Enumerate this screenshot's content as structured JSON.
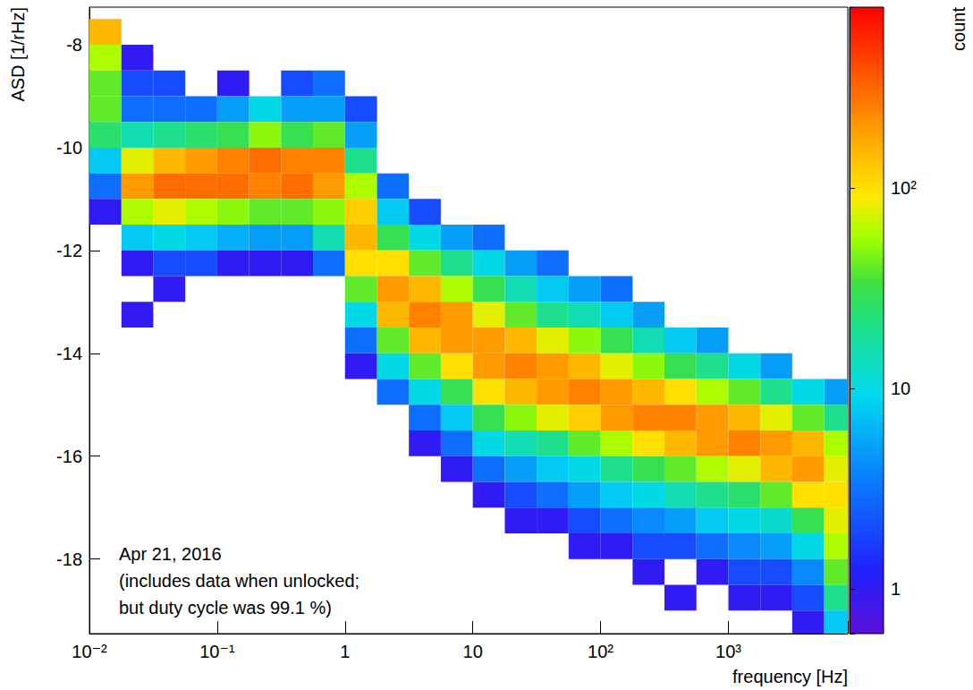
{
  "chart_data": {
    "type": "heatmap",
    "x_label": "frequency [Hz]",
    "y_label": "ASD [1/rHz]",
    "log": "x",
    "xlim": [
      0.01,
      8600
    ],
    "xticks": [
      {
        "value": 0.01,
        "label": "10⁻²"
      },
      {
        "value": 0.1,
        "label": "10⁻¹"
      },
      1,
      10,
      {
        "value": 100,
        "label": "10²"
      },
      {
        "value": 1000,
        "label": "10³"
      }
    ],
    "ylim": [
      -19.45,
      -7.27
    ],
    "yticks": [
      -8,
      -10,
      -12,
      -14,
      -16,
      -18
    ],
    "annotation": [
      "Apr 21, 2016",
      "(includes data when unlocked;",
      "but duty cycle was 99.1 %)"
    ],
    "x_bins": [
      0.01,
      0.0178,
      0.0316,
      0.0562,
      0.1,
      0.178,
      0.316,
      0.562,
      1,
      1.78,
      3.16,
      5.62,
      10,
      17.8,
      31.6,
      56.2,
      100,
      178,
      316,
      562,
      1000,
      1780,
      3160,
      5620,
      8600
    ],
    "y_bins": [
      -19.5,
      -19,
      -18.5,
      -18,
      -17.5,
      -17,
      -16.5,
      -16,
      -15.5,
      -15,
      -14.5,
      -14,
      -13.5,
      -13,
      -12.5,
      -12,
      -11.5,
      -11,
      -10.5,
      -10,
      -9.5,
      -9,
      -8.5,
      -8,
      -7.5
    ],
    "cells": [
      [
        0.01,
        -8,
        150
      ],
      [
        0.01,
        -8.5,
        60
      ],
      [
        0.01,
        -9,
        40
      ],
      [
        0.01,
        -9.5,
        40
      ],
      [
        0.01,
        -10,
        25
      ],
      [
        0.01,
        -10.5,
        8
      ],
      [
        0.01,
        -11,
        3
      ],
      [
        0.01,
        -11.5,
        1
      ],
      [
        0.0178,
        -8.5,
        1
      ],
      [
        0.0178,
        -9,
        2
      ],
      [
        0.0178,
        -9.5,
        3
      ],
      [
        0.0178,
        -10,
        15
      ],
      [
        0.0178,
        -10.5,
        80
      ],
      [
        0.0178,
        -11,
        200
      ],
      [
        0.0178,
        -11.5,
        60
      ],
      [
        0.0178,
        -12,
        8
      ],
      [
        0.0178,
        -12.5,
        1
      ],
      [
        0.0178,
        -13.5,
        1
      ],
      [
        0.0316,
        -9,
        2
      ],
      [
        0.0316,
        -9.5,
        3
      ],
      [
        0.0316,
        -10,
        20
      ],
      [
        0.0316,
        -10.5,
        150
      ],
      [
        0.0316,
        -11,
        300
      ],
      [
        0.0316,
        -11.5,
        80
      ],
      [
        0.0316,
        -12,
        10
      ],
      [
        0.0316,
        -12.5,
        2
      ],
      [
        0.0316,
        -13,
        1
      ],
      [
        0.0562,
        -9.5,
        3
      ],
      [
        0.0562,
        -10,
        25
      ],
      [
        0.0562,
        -10.5,
        200
      ],
      [
        0.0562,
        -11,
        300
      ],
      [
        0.0562,
        -11.5,
        60
      ],
      [
        0.0562,
        -12,
        8
      ],
      [
        0.0562,
        -12.5,
        2
      ],
      [
        0.1,
        -9,
        1
      ],
      [
        0.1,
        -9.5,
        5
      ],
      [
        0.1,
        -10,
        30
      ],
      [
        0.1,
        -10.5,
        250
      ],
      [
        0.1,
        -11,
        300
      ],
      [
        0.1,
        -11.5,
        50
      ],
      [
        0.1,
        -12,
        6
      ],
      [
        0.1,
        -12.5,
        1
      ],
      [
        0.178,
        -9.5,
        10
      ],
      [
        0.178,
        -10,
        50
      ],
      [
        0.178,
        -10.5,
        300
      ],
      [
        0.178,
        -11,
        250
      ],
      [
        0.178,
        -11.5,
        40
      ],
      [
        0.178,
        -12,
        5
      ],
      [
        0.178,
        -12.5,
        1
      ],
      [
        0.316,
        -9,
        2
      ],
      [
        0.316,
        -9.5,
        5
      ],
      [
        0.316,
        -10,
        30
      ],
      [
        0.316,
        -10.5,
        250
      ],
      [
        0.316,
        -11,
        300
      ],
      [
        0.316,
        -11.5,
        40
      ],
      [
        0.316,
        -12,
        5
      ],
      [
        0.316,
        -12.5,
        1
      ],
      [
        0.562,
        -9,
        3
      ],
      [
        0.562,
        -9.5,
        5
      ],
      [
        0.562,
        -10,
        40
      ],
      [
        0.562,
        -10.5,
        250
      ],
      [
        0.562,
        -11,
        200
      ],
      [
        0.562,
        -11.5,
        50
      ],
      [
        0.562,
        -12,
        15
      ],
      [
        0.562,
        -12.5,
        3
      ],
      [
        1,
        -9.5,
        2
      ],
      [
        1,
        -10,
        5
      ],
      [
        1,
        -10.5,
        20
      ],
      [
        1,
        -11,
        60
      ],
      [
        1,
        -11.5,
        120
      ],
      [
        1,
        -12,
        150
      ],
      [
        1,
        -12.5,
        100
      ],
      [
        1,
        -13,
        40
      ],
      [
        1,
        -13.5,
        10
      ],
      [
        1,
        -14,
        3
      ],
      [
        1,
        -14.5,
        1
      ],
      [
        1.78,
        -11,
        3
      ],
      [
        1.78,
        -11.5,
        8
      ],
      [
        1.78,
        -12,
        30
      ],
      [
        1.78,
        -12.5,
        100
      ],
      [
        1.78,
        -13,
        200
      ],
      [
        1.78,
        -13.5,
        150
      ],
      [
        1.78,
        -14,
        40
      ],
      [
        1.78,
        -14.5,
        10
      ],
      [
        1.78,
        -15,
        3
      ],
      [
        3.16,
        -11.5,
        2
      ],
      [
        3.16,
        -12,
        10
      ],
      [
        3.16,
        -12.5,
        40
      ],
      [
        3.16,
        -13,
        150
      ],
      [
        3.16,
        -13.5,
        250
      ],
      [
        3.16,
        -14,
        150
      ],
      [
        3.16,
        -14.5,
        40
      ],
      [
        3.16,
        -15,
        10
      ],
      [
        3.16,
        -15.5,
        3
      ],
      [
        3.16,
        -16,
        1
      ],
      [
        5.62,
        -12,
        5
      ],
      [
        5.62,
        -12.5,
        20
      ],
      [
        5.62,
        -13,
        60
      ],
      [
        5.62,
        -13.5,
        200
      ],
      [
        5.62,
        -14,
        200
      ],
      [
        5.62,
        -14.5,
        100
      ],
      [
        5.62,
        -15,
        30
      ],
      [
        5.62,
        -15.5,
        8
      ],
      [
        5.62,
        -16,
        3
      ],
      [
        5.62,
        -16.5,
        1
      ],
      [
        10,
        -12,
        3
      ],
      [
        10,
        -12.5,
        10
      ],
      [
        10,
        -13,
        30
      ],
      [
        10,
        -13.5,
        80
      ],
      [
        10,
        -14,
        200
      ],
      [
        10,
        -14.5,
        200
      ],
      [
        10,
        -15,
        100
      ],
      [
        10,
        -15.5,
        30
      ],
      [
        10,
        -16,
        10
      ],
      [
        10,
        -16.5,
        3
      ],
      [
        10,
        -17,
        1
      ],
      [
        17.8,
        -12.5,
        5
      ],
      [
        17.8,
        -13,
        15
      ],
      [
        17.8,
        -13.5,
        40
      ],
      [
        17.8,
        -14,
        150
      ],
      [
        17.8,
        -14.5,
        250
      ],
      [
        17.8,
        -15,
        150
      ],
      [
        17.8,
        -15.5,
        50
      ],
      [
        17.8,
        -16,
        15
      ],
      [
        17.8,
        -16.5,
        5
      ],
      [
        17.8,
        -17,
        2
      ],
      [
        17.8,
        -17.5,
        1
      ],
      [
        31.6,
        -12.5,
        3
      ],
      [
        31.6,
        -13,
        8
      ],
      [
        31.6,
        -13.5,
        20
      ],
      [
        31.6,
        -14,
        80
      ],
      [
        31.6,
        -14.5,
        200
      ],
      [
        31.6,
        -15,
        200
      ],
      [
        31.6,
        -15.5,
        80
      ],
      [
        31.6,
        -16,
        20
      ],
      [
        31.6,
        -16.5,
        8
      ],
      [
        31.6,
        -17,
        3
      ],
      [
        31.6,
        -17.5,
        1
      ],
      [
        56.2,
        -13,
        5
      ],
      [
        56.2,
        -13.5,
        15
      ],
      [
        56.2,
        -14,
        50
      ],
      [
        56.2,
        -14.5,
        150
      ],
      [
        56.2,
        -15,
        250
      ],
      [
        56.2,
        -15.5,
        120
      ],
      [
        56.2,
        -16,
        40
      ],
      [
        56.2,
        -16.5,
        10
      ],
      [
        56.2,
        -17,
        5
      ],
      [
        56.2,
        -17.5,
        2
      ],
      [
        56.2,
        -18,
        1
      ],
      [
        100,
        -13,
        3
      ],
      [
        100,
        -13.5,
        8
      ],
      [
        100,
        -14,
        30
      ],
      [
        100,
        -14.5,
        80
      ],
      [
        100,
        -15,
        200
      ],
      [
        100,
        -15.5,
        200
      ],
      [
        100,
        -16,
        60
      ],
      [
        100,
        -16.5,
        20
      ],
      [
        100,
        -17,
        8
      ],
      [
        100,
        -17.5,
        3
      ],
      [
        100,
        -18,
        1
      ],
      [
        178,
        -13.5,
        5
      ],
      [
        178,
        -14,
        15
      ],
      [
        178,
        -14.5,
        50
      ],
      [
        178,
        -15,
        150
      ],
      [
        178,
        -15.5,
        250
      ],
      [
        178,
        -16,
        100
      ],
      [
        178,
        -16.5,
        30
      ],
      [
        178,
        -17,
        10
      ],
      [
        178,
        -17.5,
        4
      ],
      [
        178,
        -18,
        2
      ],
      [
        178,
        -18.5,
        1
      ],
      [
        316,
        -14,
        8
      ],
      [
        316,
        -14.5,
        30
      ],
      [
        316,
        -15,
        100
      ],
      [
        316,
        -15.5,
        250
      ],
      [
        316,
        -16,
        150
      ],
      [
        316,
        -16.5,
        40
      ],
      [
        316,
        -17,
        15
      ],
      [
        316,
        -17.5,
        5
      ],
      [
        316,
        -18,
        2
      ],
      [
        316,
        -19,
        1
      ],
      [
        562,
        -14,
        5
      ],
      [
        562,
        -14.5,
        20
      ],
      [
        562,
        -15,
        60
      ],
      [
        562,
        -15.5,
        200
      ],
      [
        562,
        -16,
        200
      ],
      [
        562,
        -16.5,
        60
      ],
      [
        562,
        -17,
        20
      ],
      [
        562,
        -17.5,
        8
      ],
      [
        562,
        -18,
        3
      ],
      [
        562,
        -18.5,
        1
      ],
      [
        1000,
        -14.5,
        10
      ],
      [
        1000,
        -15,
        40
      ],
      [
        1000,
        -15.5,
        150
      ],
      [
        1000,
        -16,
        250
      ],
      [
        1000,
        -16.5,
        80
      ],
      [
        1000,
        -17,
        25
      ],
      [
        1000,
        -17.5,
        10
      ],
      [
        1000,
        -18,
        4
      ],
      [
        1000,
        -18.5,
        2
      ],
      [
        1000,
        -19,
        1
      ],
      [
        1780,
        -14.5,
        5
      ],
      [
        1780,
        -15,
        20
      ],
      [
        1780,
        -15.5,
        80
      ],
      [
        1780,
        -16,
        200
      ],
      [
        1780,
        -16.5,
        150
      ],
      [
        1780,
        -17,
        40
      ],
      [
        1780,
        -17.5,
        12
      ],
      [
        1780,
        -18,
        5
      ],
      [
        1780,
        -18.5,
        2
      ],
      [
        1780,
        -19,
        1
      ],
      [
        3160,
        -15,
        10
      ],
      [
        3160,
        -15.5,
        40
      ],
      [
        3160,
        -16,
        150
      ],
      [
        3160,
        -16.5,
        200
      ],
      [
        3160,
        -17,
        100
      ],
      [
        3160,
        -17.5,
        30
      ],
      [
        3160,
        -18,
        10
      ],
      [
        3160,
        -18.5,
        4
      ],
      [
        3160,
        -19,
        2
      ],
      [
        3160,
        -19.5,
        1
      ],
      [
        5620,
        -15,
        5
      ],
      [
        5620,
        -15.5,
        20
      ],
      [
        5620,
        -16,
        60
      ],
      [
        5620,
        -16.5,
        80
      ],
      [
        5620,
        -17,
        100
      ],
      [
        5620,
        -17.5,
        80
      ],
      [
        5620,
        -18,
        60
      ],
      [
        5620,
        -18.5,
        40
      ],
      [
        5620,
        -19,
        20
      ],
      [
        5620,
        -19.5,
        8
      ]
    ],
    "colorbar": {
      "title": "count",
      "log": true,
      "zlim": [
        0.6,
        800
      ],
      "zticks": [
        1,
        10,
        {
          "value": 100,
          "label": "10²"
        }
      ]
    }
  }
}
